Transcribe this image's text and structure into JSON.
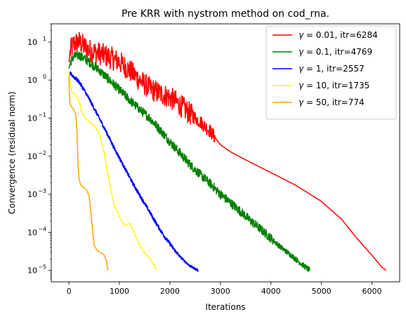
{
  "chart_data": {
    "type": "line",
    "title": "Pre KRR with nystrom method on cod_rna.",
    "xlabel": "Iterations",
    "ylabel": "Convergence (residual norm)",
    "xscale": "linear",
    "yscale": "log",
    "xlim": [
      -350,
      6550
    ],
    "ylim": [
      5e-06,
      30
    ],
    "xticks": [
      0,
      1000,
      2000,
      3000,
      4000,
      5000,
      6000
    ],
    "xtick_labels": [
      "0",
      "1000",
      "2000",
      "3000",
      "4000",
      "5000",
      "6000"
    ],
    "yticks": [
      1e-05,
      0.0001,
      0.001,
      0.01,
      0.1,
      1,
      10
    ],
    "ytick_labels": [
      {
        "base": "10",
        "exp": "−5"
      },
      {
        "base": "10",
        "exp": "−4"
      },
      {
        "base": "10",
        "exp": "−3"
      },
      {
        "base": "10",
        "exp": "−2"
      },
      {
        "base": "10",
        "exp": "−1"
      },
      {
        "base": "10",
        "exp": "0"
      },
      {
        "base": "10",
        "exp": "1"
      }
    ],
    "grid": false,
    "legend_position": "top-right",
    "series": [
      {
        "name": "γ = 0.01, itr=6284",
        "legend_gamma": "0.01",
        "legend_itr": "6284",
        "color": "#ff0000",
        "noise": 0.3,
        "noise_until": 2900,
        "x": [
          0,
          30,
          100,
          200,
          400,
          600,
          800,
          1000,
          1200,
          1400,
          1600,
          1800,
          2000,
          2200,
          2400,
          2600,
          2800,
          3000,
          3200,
          3500,
          4000,
          4500,
          5000,
          5400,
          5700,
          6000,
          6200,
          6284
        ],
        "y": [
          3.0,
          6.0,
          9.0,
          10.0,
          6.0,
          5.0,
          4.0,
          3.0,
          1.8,
          1.0,
          0.6,
          0.45,
          0.35,
          0.22,
          0.13,
          0.08,
          0.045,
          0.02,
          0.013,
          0.008,
          0.0037,
          0.0017,
          0.00065,
          0.00022,
          7e-05,
          2.5e-05,
          1.2e-05,
          1e-05
        ]
      },
      {
        "name": "γ = 0.1, itr=4769",
        "legend_gamma": "0.1",
        "legend_itr": "4769",
        "color": "#008000",
        "noise": 0.12,
        "noise_until": 4769,
        "x": [
          0,
          30,
          100,
          200,
          400,
          600,
          800,
          1000,
          1200,
          1400,
          1600,
          1800,
          2000,
          2200,
          2400,
          2600,
          2800,
          3000,
          3200,
          3400,
          3600,
          3800,
          4000,
          4200,
          4400,
          4600,
          4769
        ],
        "y": [
          2.0,
          3.0,
          4.2,
          4.5,
          3.0,
          1.8,
          1.0,
          0.55,
          0.3,
          0.17,
          0.1,
          0.05,
          0.024,
          0.012,
          0.006,
          0.0033,
          0.0019,
          0.001,
          0.0006,
          0.00035,
          0.0002,
          0.00012,
          7e-05,
          4e-05,
          2.5e-05,
          1.5e-05,
          1e-05
        ]
      },
      {
        "name": "γ = 1, itr=2557",
        "legend_gamma": "1",
        "legend_itr": "2557",
        "color": "#0000ff",
        "noise": 0.05,
        "noise_until": 2557,
        "x": [
          0,
          30,
          100,
          200,
          300,
          400,
          500,
          600,
          700,
          800,
          900,
          1000,
          1100,
          1200,
          1300,
          1400,
          1500,
          1600,
          1700,
          1800,
          1900,
          2000,
          2100,
          2200,
          2300,
          2400,
          2500,
          2557
        ],
        "y": [
          1.2,
          1.5,
          1.2,
          0.9,
          0.55,
          0.32,
          0.18,
          0.1,
          0.055,
          0.03,
          0.016,
          0.009,
          0.005,
          0.0028,
          0.0016,
          0.00095,
          0.00057,
          0.00034,
          0.0002,
          0.00012,
          7.5e-05,
          5e-05,
          3.3e-05,
          2.3e-05,
          1.7e-05,
          1.3e-05,
          1.1e-05,
          1e-05
        ]
      },
      {
        "name": "γ = 10, itr=1735",
        "legend_gamma": "10",
        "legend_itr": "1735",
        "color": "#ffff00",
        "noise": 0.0,
        "noise_until": 0,
        "x": [
          0,
          20,
          50,
          100,
          150,
          200,
          250,
          300,
          400,
          500,
          600,
          700,
          800,
          900,
          1000,
          1100,
          1200,
          1300,
          1400,
          1500,
          1600,
          1700,
          1735
        ],
        "y": [
          1.6,
          0.9,
          0.5,
          0.45,
          0.38,
          0.27,
          0.15,
          0.11,
          0.08,
          0.062,
          0.04,
          0.012,
          0.002,
          0.0005,
          0.00026,
          0.00015,
          0.00017,
          9.5e-05,
          4.5e-05,
          2.9e-05,
          2.1e-05,
          1.3e-05,
          1e-05
        ]
      },
      {
        "name": "γ = 50, itr=774",
        "legend_gamma": "50",
        "legend_itr": "774",
        "color": "#ffa500",
        "noise": 0.0,
        "noise_until": 0,
        "x": [
          0,
          5,
          10,
          20,
          30,
          50,
          80,
          100,
          120,
          140,
          160,
          180,
          200,
          230,
          260,
          300,
          350,
          400,
          450,
          500,
          550,
          600,
          650,
          700,
          740,
          774
        ],
        "y": [
          1.2,
          0.6,
          0.35,
          0.25,
          0.22,
          0.2,
          0.18,
          0.16,
          0.14,
          0.11,
          0.04,
          0.006,
          0.0025,
          0.0018,
          0.0016,
          0.0015,
          0.0013,
          0.0009,
          0.0002,
          4.5e-05,
          3.5e-05,
          3e-05,
          2.8e-05,
          2.5e-05,
          1.8e-05,
          1e-05
        ]
      }
    ]
  }
}
